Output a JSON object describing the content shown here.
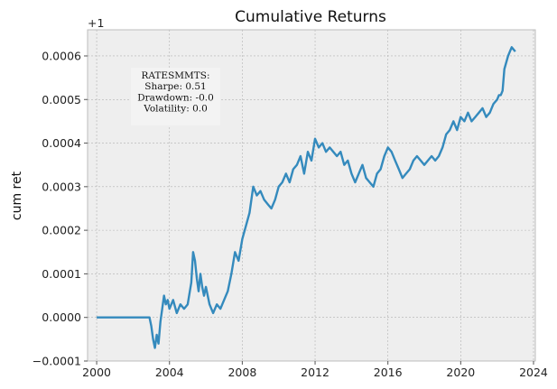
{
  "chart_data": {
    "type": "line",
    "title": "Cumulative Returns",
    "xlabel": "",
    "ylabel": "cum ret",
    "y_offset_label": "+1",
    "xlim": [
      1999.5,
      2024.1
    ],
    "ylim": [
      -0.0001,
      0.00066
    ],
    "x_ticks": [
      2000,
      2004,
      2008,
      2012,
      2016,
      2020,
      2024
    ],
    "x_tick_labels": [
      "2000",
      "2004",
      "2008",
      "2012",
      "2016",
      "2020",
      "2024"
    ],
    "y_ticks": [
      -0.0001,
      0.0,
      0.0001,
      0.0002,
      0.0003,
      0.0004,
      0.0005,
      0.0006
    ],
    "y_tick_labels": [
      "−0.0001",
      "0.0000",
      "0.0001",
      "0.0002",
      "0.0003",
      "0.0004",
      "0.0005",
      "0.0006"
    ],
    "grid": true,
    "line_color": "#348abd",
    "background_color": "#eeeeee",
    "annotation": {
      "lines": [
        "RATESMMTS:",
        "Sharpe: 0.51",
        "Drawdown: -0.0",
        "Volatility: 0.0"
      ],
      "placement": "top-left"
    },
    "series": [
      {
        "x": [
          2000.0,
          2001.0,
          2002.0,
          2002.9,
          2003.0,
          2003.1,
          2003.2,
          2003.3,
          2003.4,
          2003.5,
          2003.6,
          2003.7,
          2003.8,
          2003.9,
          2004.0,
          2004.2,
          2004.4,
          2004.6,
          2004.8,
          2005.0,
          2005.2,
          2005.3,
          2005.4,
          2005.5,
          2005.6,
          2005.7,
          2005.8,
          2005.9,
          2006.0,
          2006.2,
          2006.4,
          2006.6,
          2006.8,
          2007.0,
          2007.2,
          2007.4,
          2007.6,
          2007.8,
          2008.0,
          2008.2,
          2008.4,
          2008.6,
          2008.8,
          2009.0,
          2009.2,
          2009.4,
          2009.6,
          2009.8,
          2010.0,
          2010.2,
          2010.4,
          2010.6,
          2010.8,
          2011.0,
          2011.2,
          2011.4,
          2011.6,
          2011.8,
          2012.0,
          2012.2,
          2012.4,
          2012.6,
          2012.8,
          2013.0,
          2013.2,
          2013.4,
          2013.6,
          2013.8,
          2014.0,
          2014.2,
          2014.4,
          2014.6,
          2014.8,
          2015.0,
          2015.2,
          2015.4,
          2015.6,
          2015.8,
          2016.0,
          2016.2,
          2016.4,
          2016.6,
          2016.8,
          2017.0,
          2017.2,
          2017.4,
          2017.6,
          2017.8,
          2018.0,
          2018.2,
          2018.4,
          2018.6,
          2018.8,
          2019.0,
          2019.2,
          2019.4,
          2019.6,
          2019.8,
          2020.0,
          2020.2,
          2020.4,
          2020.6,
          2020.8,
          2021.0,
          2021.2,
          2021.4,
          2021.6,
          2021.8,
          2022.0,
          2022.1,
          2022.2,
          2022.3,
          2022.4,
          2022.6,
          2022.8,
          2023.0
        ],
        "values": [
          0.0,
          0.0,
          0.0,
          0.0,
          -2e-05,
          -5e-05,
          -7e-05,
          -4e-05,
          -6e-05,
          -1e-05,
          2e-05,
          5e-05,
          3e-05,
          4e-05,
          2e-05,
          4e-05,
          1e-05,
          3e-05,
          2e-05,
          3e-05,
          8e-05,
          0.00015,
          0.00013,
          9e-05,
          6e-05,
          0.0001,
          7e-05,
          5e-05,
          7e-05,
          3e-05,
          1e-05,
          3e-05,
          2e-05,
          4e-05,
          6e-05,
          0.0001,
          0.00015,
          0.00013,
          0.00018,
          0.00021,
          0.00024,
          0.0003,
          0.00028,
          0.00029,
          0.00027,
          0.00026,
          0.00025,
          0.00027,
          0.0003,
          0.00031,
          0.00033,
          0.00031,
          0.00034,
          0.00035,
          0.00037,
          0.00033,
          0.00038,
          0.00036,
          0.00041,
          0.00039,
          0.0004,
          0.00038,
          0.00039,
          0.00038,
          0.00037,
          0.00038,
          0.00035,
          0.00036,
          0.00033,
          0.00031,
          0.00033,
          0.00035,
          0.00032,
          0.00031,
          0.0003,
          0.00033,
          0.00034,
          0.00037,
          0.00039,
          0.00038,
          0.00036,
          0.00034,
          0.00032,
          0.00033,
          0.00034,
          0.00036,
          0.00037,
          0.00036,
          0.00035,
          0.00036,
          0.00037,
          0.00036,
          0.00037,
          0.00039,
          0.00042,
          0.00043,
          0.00045,
          0.00043,
          0.00046,
          0.00045,
          0.00047,
          0.00045,
          0.00046,
          0.00047,
          0.00048,
          0.00046,
          0.00047,
          0.00049,
          0.0005,
          0.00051,
          0.00051,
          0.00052,
          0.00057,
          0.0006,
          0.00062,
          0.00061
        ]
      }
    ]
  }
}
